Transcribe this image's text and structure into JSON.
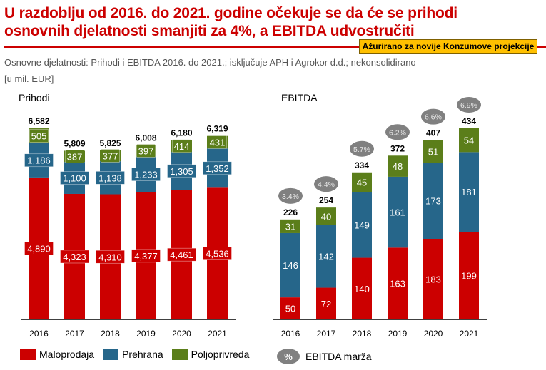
{
  "header": {
    "title_line1": "U razdoblju od 2016. do 2021. godine očekuje se da će se prihodi",
    "title_line2_a": "osnovnih djelatnosti smanjiti za 4%, a ",
    "title_line2_b": "EBITDA",
    "title_line2_c": " udvostručiti",
    "tag": "Ažurirano za novije Konzumove projekcije",
    "subtitle": "Osnovne djelatnosti: Prihodi i EBITDA 2016. do 2021.; isključuje APH i Agrokor d.d.; nekonsolidirano",
    "unit": "[u mil. EUR]"
  },
  "colors": {
    "maloprodaja": "#cc0000",
    "prehrana": "#26668a",
    "poljoprivreda": "#5b7e1a",
    "margin_bubble": "#808080",
    "title": "#cc0000",
    "tag_bg": "#ffc000"
  },
  "legend": {
    "maloprodaja": "Maloprodaja",
    "prehrana": "Prehrana",
    "poljoprivreda": "Poljoprivreda",
    "margin_symbol": "%",
    "margin_label": "EBITDA marža"
  },
  "chart_data": [
    {
      "type": "bar",
      "stacked": true,
      "title": "Prihodi",
      "categories": [
        "2016",
        "2017",
        "2018",
        "2019",
        "2020",
        "2021"
      ],
      "series": [
        {
          "name": "Maloprodaja",
          "values": [
            4890,
            4323,
            4310,
            4377,
            4461,
            4536
          ]
        },
        {
          "name": "Prehrana",
          "values": [
            1186,
            1100,
            1138,
            1233,
            1305,
            1352
          ]
        },
        {
          "name": "Poljoprivreda",
          "values": [
            505,
            387,
            377,
            397,
            414,
            431
          ]
        }
      ],
      "totals": [
        "6,582",
        "5,809",
        "5,825",
        "6,008",
        "6,180",
        "6,319"
      ],
      "labels": {
        "Maloprodaja": [
          "4,890",
          "4,323",
          "4,310",
          "4,377",
          "4,461",
          "4,536"
        ],
        "Prehrana": [
          "1,186",
          "1,100",
          "1,138",
          "1,233",
          "1,305",
          "1,352"
        ],
        "Poljoprivreda": [
          "505",
          "387",
          "377",
          "397",
          "414",
          "431"
        ]
      },
      "ylim": [
        0,
        6600
      ],
      "xlabel": "",
      "ylabel": "",
      "grid": false
    },
    {
      "type": "bar",
      "stacked": true,
      "title": "EBITDA",
      "categories": [
        "2016",
        "2017",
        "2018",
        "2019",
        "2020",
        "2021"
      ],
      "series": [
        {
          "name": "Maloprodaja",
          "values": [
            50,
            72,
            140,
            163,
            183,
            199
          ]
        },
        {
          "name": "Prehrana",
          "values": [
            146,
            142,
            149,
            161,
            173,
            181
          ]
        },
        {
          "name": "Poljoprivreda",
          "values": [
            31,
            40,
            45,
            48,
            51,
            54
          ]
        }
      ],
      "totals": [
        "226",
        "254",
        "334",
        "372",
        "407",
        "434"
      ],
      "labels": {
        "Maloprodaja": [
          "50",
          "72",
          "140",
          "163",
          "183",
          "199"
        ],
        "Prehrana": [
          "146",
          "142",
          "149",
          "161",
          "173",
          "181"
        ],
        "Poljoprivreda": [
          "31",
          "40",
          "45",
          "48",
          "51",
          "54"
        ]
      },
      "ebitda_margin": [
        "3.4%",
        "4.4%",
        "5.7%",
        "6.2%",
        "6.6%",
        "6.9%"
      ],
      "ylim": [
        0,
        440
      ],
      "xlabel": "",
      "ylabel": "",
      "grid": false
    }
  ]
}
